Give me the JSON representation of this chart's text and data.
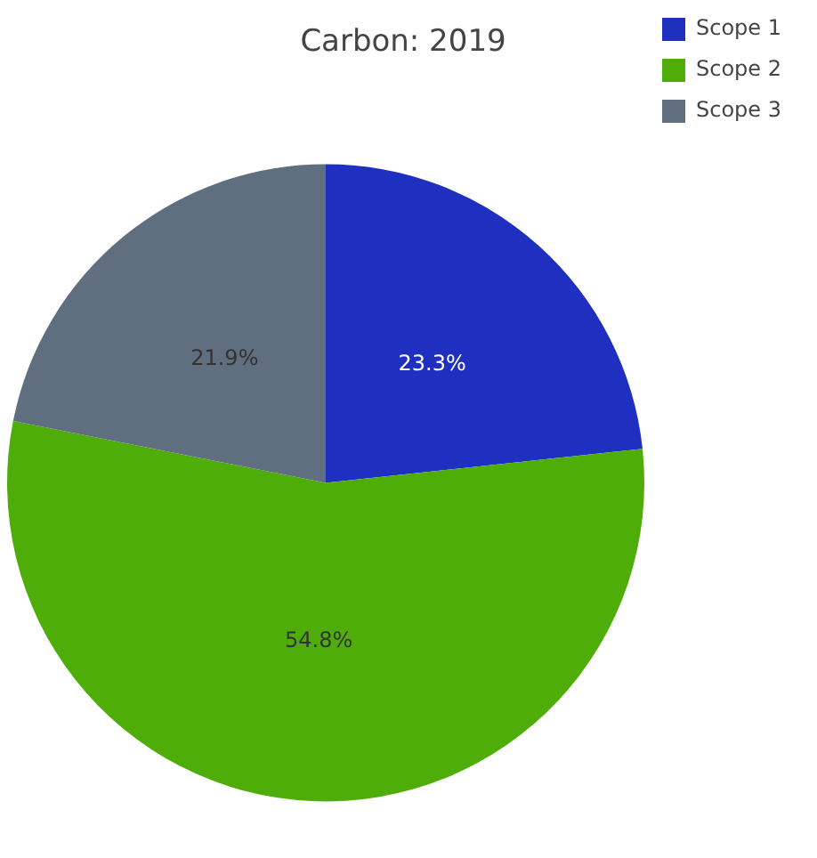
{
  "chart_data": {
    "type": "pie",
    "title": "Carbon: 2019",
    "categories": [
      "Scope 1",
      "Scope 2",
      "Scope 3"
    ],
    "values": [
      23.3,
      54.8,
      21.9
    ],
    "colors": [
      "#1f2fbf",
      "#4fad0a",
      "#5f6f7f"
    ],
    "value_labels": [
      "23.3%",
      "54.8%",
      "21.9%"
    ],
    "legend": "top right"
  }
}
